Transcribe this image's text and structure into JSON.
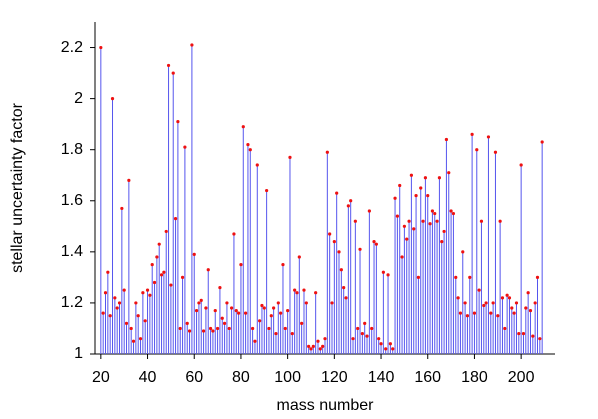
{
  "chart_data": {
    "type": "stem",
    "xlabel": "mass number",
    "ylabel": "stellar uncertainty factor",
    "x": [
      20,
      21,
      22,
      23,
      24,
      25,
      26,
      27,
      28,
      29,
      30,
      31,
      32,
      33,
      34,
      35,
      36,
      37,
      38,
      39,
      40,
      41,
      42,
      43,
      44,
      45,
      46,
      47,
      48,
      49,
      50,
      51,
      52,
      53,
      54,
      55,
      56,
      57,
      58,
      59,
      60,
      61,
      62,
      63,
      64,
      65,
      66,
      67,
      68,
      69,
      70,
      71,
      72,
      73,
      74,
      75,
      76,
      77,
      78,
      79,
      80,
      81,
      82,
      83,
      84,
      85,
      86,
      87,
      88,
      89,
      90,
      91,
      92,
      93,
      94,
      95,
      96,
      97,
      98,
      99,
      100,
      101,
      102,
      103,
      104,
      105,
      106,
      107,
      108,
      109,
      110,
      111,
      112,
      113,
      114,
      115,
      116,
      117,
      118,
      119,
      120,
      121,
      122,
      123,
      124,
      125,
      126,
      127,
      128,
      129,
      130,
      131,
      132,
      133,
      134,
      135,
      136,
      137,
      138,
      139,
      140,
      141,
      142,
      143,
      144,
      145,
      146,
      147,
      148,
      149,
      150,
      151,
      152,
      153,
      154,
      155,
      156,
      157,
      158,
      159,
      160,
      161,
      162,
      163,
      164,
      165,
      166,
      167,
      168,
      169,
      170,
      171,
      172,
      173,
      174,
      175,
      176,
      177,
      178,
      179,
      180,
      181,
      182,
      183,
      184,
      185,
      186,
      187,
      188,
      189,
      190,
      191,
      192,
      193,
      194,
      195,
      196,
      197,
      198,
      199,
      200,
      201,
      202,
      203,
      204,
      205,
      206,
      207,
      208,
      209
    ],
    "values": [
      2.2,
      1.16,
      1.24,
      1.32,
      1.15,
      2.0,
      1.22,
      1.18,
      1.2,
      1.57,
      1.25,
      1.12,
      1.68,
      1.1,
      1.05,
      1.2,
      1.15,
      1.06,
      1.24,
      1.13,
      1.25,
      1.23,
      1.35,
      1.28,
      1.38,
      1.43,
      1.31,
      1.32,
      1.48,
      2.13,
      1.27,
      2.1,
      1.53,
      1.91,
      1.1,
      1.3,
      1.81,
      1.12,
      1.09,
      2.21,
      1.39,
      1.17,
      1.2,
      1.21,
      1.09,
      1.18,
      1.33,
      1.1,
      1.09,
      1.17,
      1.1,
      1.26,
      1.14,
      1.12,
      1.2,
      1.1,
      1.18,
      1.47,
      1.17,
      1.16,
      1.35,
      1.89,
      1.16,
      1.82,
      1.8,
      1.1,
      1.05,
      1.74,
      1.13,
      1.19,
      1.18,
      1.64,
      1.1,
      1.15,
      1.18,
      1.08,
      1.2,
      1.16,
      1.35,
      1.1,
      1.17,
      1.77,
      1.08,
      1.25,
      1.24,
      1.38,
      1.12,
      1.25,
      1.2,
      1.03,
      1.02,
      1.03,
      1.24,
      1.05,
      1.02,
      1.03,
      1.06,
      1.79,
      1.47,
      1.2,
      1.44,
      1.63,
      1.4,
      1.33,
      1.26,
      1.22,
      1.58,
      1.6,
      1.06,
      1.52,
      1.1,
      1.41,
      1.08,
      1.12,
      1.07,
      1.56,
      1.1,
      1.44,
      1.43,
      1.06,
      1.04,
      1.32,
      1.02,
      1.31,
      1.04,
      1.02,
      1.61,
      1.54,
      1.66,
      1.38,
      1.5,
      1.45,
      1.52,
      1.7,
      1.49,
      1.62,
      1.3,
      1.65,
      1.52,
      1.69,
      1.62,
      1.51,
      1.56,
      1.55,
      1.52,
      1.69,
      1.44,
      1.48,
      1.84,
      1.71,
      1.56,
      1.55,
      1.3,
      1.22,
      1.16,
      1.4,
      1.2,
      1.15,
      1.3,
      1.86,
      1.16,
      1.8,
      1.25,
      1.52,
      1.19,
      1.2,
      1.85,
      1.16,
      1.2,
      1.79,
      1.15,
      1.52,
      1.22,
      1.1,
      1.23,
      1.22,
      1.18,
      1.16,
      1.2,
      1.08,
      1.74,
      1.08,
      1.18,
      1.24,
      1.17,
      1.07,
      1.2,
      1.3,
      1.06,
      1.83
    ],
    "stem_color": "#5555ee",
    "marker_color": "#ee1111",
    "xlim": [
      17.5,
      214.5
    ],
    "xticks": [
      20,
      40,
      60,
      80,
      100,
      120,
      140,
      160,
      180,
      200
    ],
    "ylim": [
      1,
      2.3
    ],
    "yticks": [
      1,
      1.2,
      1.4,
      1.6,
      1.8,
      2,
      2.2
    ]
  }
}
